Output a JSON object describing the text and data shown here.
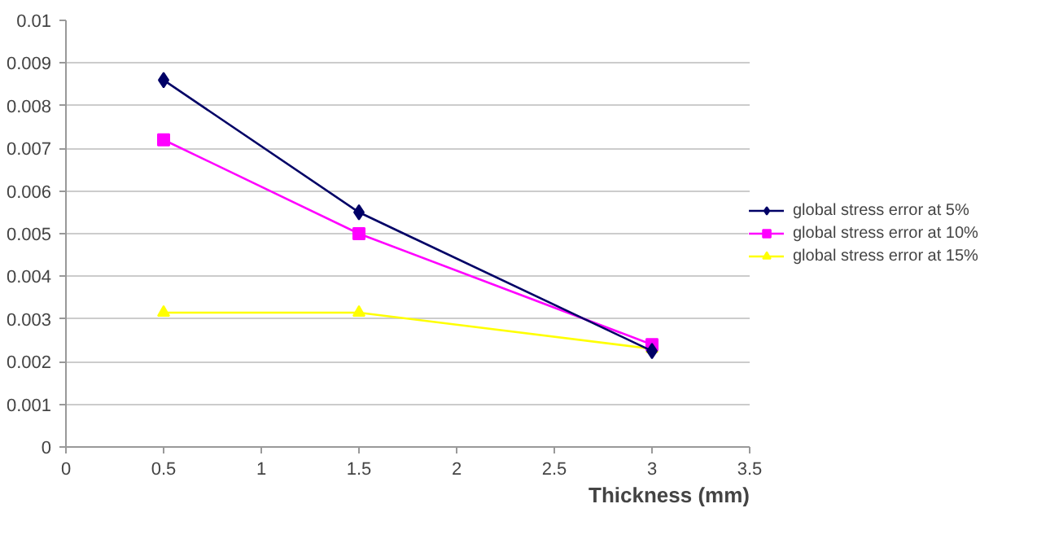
{
  "chart_data": {
    "type": "line",
    "xlabel": "Thickness (mm)",
    "x": [
      0.5,
      1.5,
      3
    ],
    "series": [
      {
        "name": "global stress error at 5%",
        "color": "#000066",
        "values": [
          0.0086,
          0.0055,
          0.00225
        ],
        "marker": "diamond"
      },
      {
        "name": "global stress error at 10%",
        "color": "#ff00ff",
        "values": [
          0.0072,
          0.005,
          0.0024
        ],
        "marker": "square"
      },
      {
        "name": "global stress error at 15%",
        "color": "#ffff00",
        "values": [
          0.00315,
          0.00315,
          0.0023
        ],
        "marker": "triangle"
      }
    ],
    "xlim": [
      0,
      3.5
    ],
    "xticks": [
      0,
      0.5,
      1,
      1.5,
      2,
      2.5,
      3,
      3.5
    ],
    "ylim": [
      0,
      0.01
    ],
    "yticks": [
      0,
      0.001,
      0.002,
      0.003,
      0.004,
      0.005,
      0.006,
      0.007,
      0.008,
      0.009,
      0.01
    ],
    "grid": "y",
    "legend": "right",
    "line_style": "solid"
  }
}
